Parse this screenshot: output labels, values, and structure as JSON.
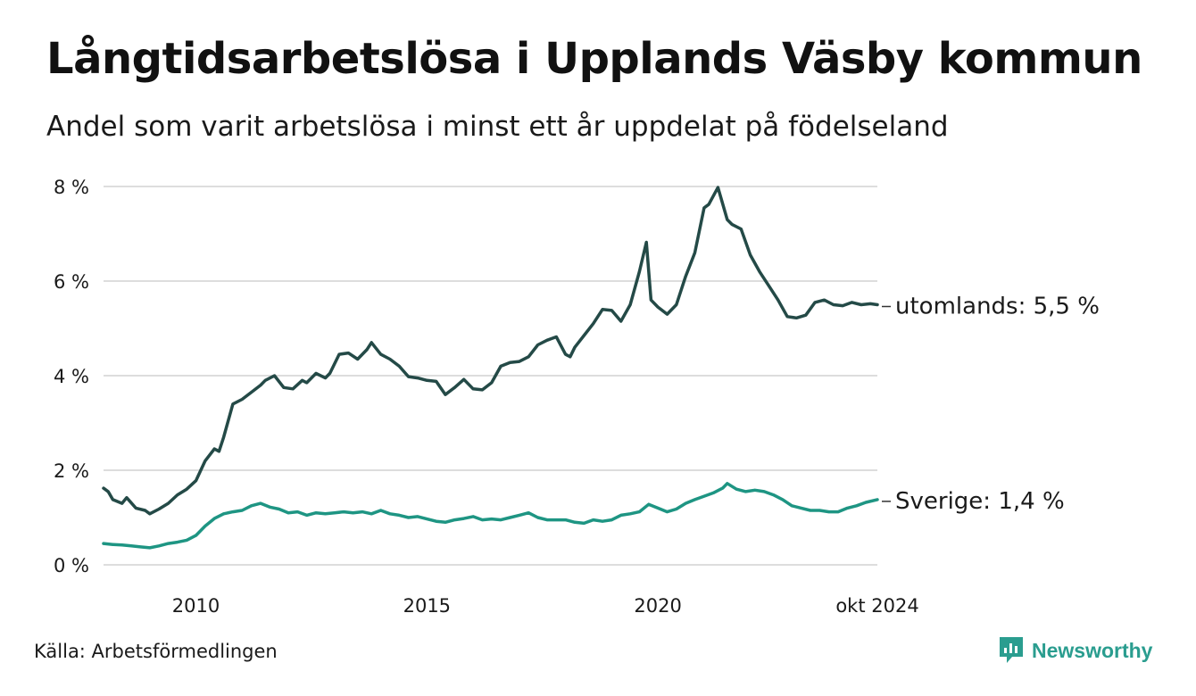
{
  "header": {
    "title": "Långtidsarbetslösa i Upplands Väsby kommun",
    "subtitle": "Andel som varit arbetslösa i minst ett år uppdelat på födelseland"
  },
  "footer": {
    "source": "Källa: Arbetsförmedlingen",
    "brand": "Newsworthy"
  },
  "colors": {
    "utomlands": "#244a47",
    "sverige": "#1e9583",
    "grid": "#dddddd",
    "brand": "#2a9d8f"
  },
  "chart_data": {
    "type": "line",
    "title": "Långtidsarbetslösa i Upplands Väsby kommun",
    "xlabel": "",
    "ylabel": "",
    "ylim": [
      0,
      8
    ],
    "yticks": [
      0,
      2,
      4,
      6,
      8
    ],
    "ytick_labels": [
      "0 %",
      "2 %",
      "4 %",
      "6 %",
      "8 %"
    ],
    "xlim": [
      2008.0,
      2024.75
    ],
    "xticks": [
      2010,
      2015,
      2020,
      2024.75
    ],
    "xtick_labels": [
      "2010",
      "2015",
      "2020",
      "okt 2024"
    ],
    "grid": true,
    "series": [
      {
        "name": "utomlands",
        "end_label": "utomlands: 5,5 %",
        "x": [
          2008.0,
          2008.1,
          2008.2,
          2008.4,
          2008.5,
          2008.7,
          2008.9,
          2009.0,
          2009.2,
          2009.4,
          2009.6,
          2009.8,
          2010.0,
          2010.2,
          2010.4,
          2010.5,
          2010.6,
          2010.8,
          2011.0,
          2011.2,
          2011.4,
          2011.5,
          2011.7,
          2011.9,
          2012.1,
          2012.3,
          2012.4,
          2012.6,
          2012.8,
          2012.9,
          2013.1,
          2013.3,
          2013.5,
          2013.7,
          2013.8,
          2014.0,
          2014.2,
          2014.4,
          2014.6,
          2014.8,
          2015.0,
          2015.2,
          2015.4,
          2015.6,
          2015.8,
          2016.0,
          2016.2,
          2016.4,
          2016.6,
          2016.8,
          2017.0,
          2017.2,
          2017.4,
          2017.6,
          2017.8,
          2018.0,
          2018.1,
          2018.2,
          2018.4,
          2018.6,
          2018.8,
          2019.0,
          2019.2,
          2019.4,
          2019.6,
          2019.75,
          2019.85,
          2020.0,
          2020.2,
          2020.4,
          2020.6,
          2020.8,
          2021.0,
          2021.1,
          2021.3,
          2021.5,
          2021.6,
          2021.8,
          2022.0,
          2022.2,
          2022.4,
          2022.6,
          2022.8,
          2023.0,
          2023.2,
          2023.4,
          2023.6,
          2023.8,
          2024.0,
          2024.2,
          2024.4,
          2024.6,
          2024.75
        ],
        "values": [
          1.62,
          1.55,
          1.38,
          1.3,
          1.42,
          1.2,
          1.15,
          1.08,
          1.18,
          1.3,
          1.48,
          1.6,
          1.78,
          2.2,
          2.45,
          2.4,
          2.7,
          3.4,
          3.5,
          3.65,
          3.8,
          3.9,
          4.0,
          3.75,
          3.72,
          3.9,
          3.85,
          4.05,
          3.95,
          4.05,
          4.45,
          4.48,
          4.35,
          4.55,
          4.7,
          4.45,
          4.35,
          4.2,
          3.98,
          3.95,
          3.9,
          3.88,
          3.6,
          3.75,
          3.92,
          3.72,
          3.7,
          3.85,
          4.2,
          4.28,
          4.3,
          4.4,
          4.65,
          4.75,
          4.82,
          4.45,
          4.4,
          4.6,
          4.85,
          5.1,
          5.4,
          5.38,
          5.15,
          5.5,
          6.2,
          6.82,
          5.6,
          5.45,
          5.3,
          5.5,
          6.1,
          6.6,
          7.55,
          7.62,
          7.98,
          7.3,
          7.2,
          7.1,
          6.55,
          6.2,
          5.9,
          5.6,
          5.25,
          5.22,
          5.28,
          5.55,
          5.6,
          5.5,
          5.48,
          5.55,
          5.5,
          5.52,
          5.5
        ]
      },
      {
        "name": "Sverige",
        "end_label": "Sverige: 1,4 %",
        "x": [
          2008.0,
          2008.2,
          2008.4,
          2008.6,
          2008.8,
          2009.0,
          2009.2,
          2009.4,
          2009.6,
          2009.8,
          2010.0,
          2010.2,
          2010.4,
          2010.6,
          2010.8,
          2011.0,
          2011.2,
          2011.4,
          2011.6,
          2011.8,
          2012.0,
          2012.2,
          2012.4,
          2012.6,
          2012.8,
          2013.0,
          2013.2,
          2013.4,
          2013.6,
          2013.8,
          2014.0,
          2014.2,
          2014.4,
          2014.6,
          2014.8,
          2015.0,
          2015.2,
          2015.4,
          2015.6,
          2015.8,
          2016.0,
          2016.2,
          2016.4,
          2016.6,
          2016.8,
          2017.0,
          2017.2,
          2017.4,
          2017.6,
          2017.8,
          2018.0,
          2018.2,
          2018.4,
          2018.6,
          2018.8,
          2019.0,
          2019.2,
          2019.4,
          2019.6,
          2019.8,
          2020.0,
          2020.2,
          2020.4,
          2020.6,
          2020.8,
          2021.0,
          2021.2,
          2021.4,
          2021.5,
          2021.7,
          2021.9,
          2022.1,
          2022.3,
          2022.5,
          2022.7,
          2022.9,
          2023.1,
          2023.3,
          2023.5,
          2023.7,
          2023.9,
          2024.1,
          2024.3,
          2024.5,
          2024.75
        ],
        "values": [
          0.45,
          0.43,
          0.42,
          0.4,
          0.38,
          0.36,
          0.4,
          0.45,
          0.48,
          0.52,
          0.62,
          0.82,
          0.98,
          1.08,
          1.12,
          1.15,
          1.25,
          1.3,
          1.22,
          1.18,
          1.1,
          1.12,
          1.05,
          1.1,
          1.08,
          1.1,
          1.12,
          1.1,
          1.12,
          1.08,
          1.15,
          1.08,
          1.05,
          1.0,
          1.02,
          0.97,
          0.92,
          0.9,
          0.95,
          0.98,
          1.02,
          0.95,
          0.97,
          0.95,
          1.0,
          1.05,
          1.1,
          1.0,
          0.95,
          0.95,
          0.95,
          0.9,
          0.88,
          0.95,
          0.92,
          0.95,
          1.05,
          1.08,
          1.12,
          1.28,
          1.2,
          1.12,
          1.18,
          1.3,
          1.38,
          1.45,
          1.52,
          1.62,
          1.72,
          1.6,
          1.55,
          1.58,
          1.55,
          1.48,
          1.38,
          1.25,
          1.2,
          1.15,
          1.15,
          1.12,
          1.12,
          1.2,
          1.25,
          1.32,
          1.38
        ]
      }
    ]
  }
}
